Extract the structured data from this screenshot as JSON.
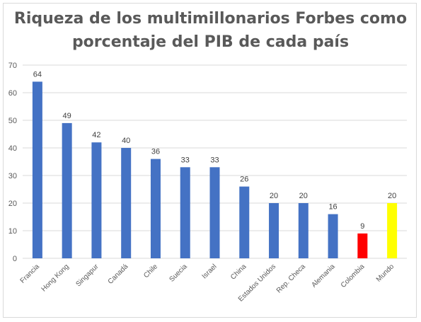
{
  "chart_data": {
    "type": "bar",
    "title": "Riqueza de los multimillonarios Forbes como porcentaje del PIB de cada país",
    "categories": [
      "Francia",
      "Hong Kong",
      "Singapur",
      "Canadá",
      "Chile",
      "Suecia",
      "Israel",
      "China",
      "Estados Unidos",
      "Rep. Checa",
      "Alemania",
      "Colombia",
      "Mundo"
    ],
    "values": [
      64,
      49,
      42,
      40,
      36,
      33,
      33,
      26,
      20,
      20,
      16,
      9,
      20
    ],
    "value_labels": [
      "64",
      "49",
      "42",
      "40",
      "36",
      "33",
      "33",
      "26",
      "20",
      "20",
      "16",
      "9",
      "20"
    ],
    "bar_colors": [
      "#4472c4",
      "#4472c4",
      "#4472c4",
      "#4472c4",
      "#4472c4",
      "#4472c4",
      "#4472c4",
      "#4472c4",
      "#4472c4",
      "#4472c4",
      "#4472c4",
      "#ff0000",
      "#ffff00"
    ],
    "yticks": [
      0,
      10,
      20,
      30,
      40,
      50,
      60,
      70
    ],
    "ylim": [
      0,
      70
    ],
    "xlabel": "",
    "ylabel": "",
    "grid": true,
    "legend": "none",
    "gridline_color": "#d9d9d9"
  }
}
